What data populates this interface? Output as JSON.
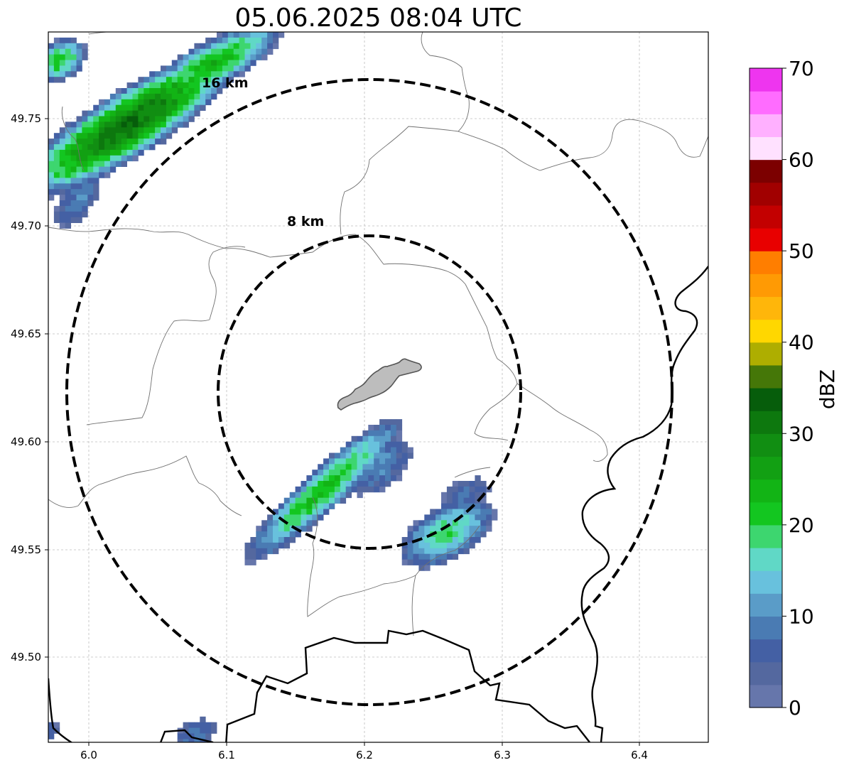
{
  "title": "05.06.2025 08:04 UTC",
  "map": {
    "x_ticks": [
      "6.0",
      "6.1",
      "6.2",
      "6.3",
      "6.4"
    ],
    "y_ticks": [
      "49.75",
      "49.70",
      "49.65",
      "49.60",
      "49.55",
      "49.50"
    ],
    "rings": [
      {
        "label": "8 km"
      },
      {
        "label": "16 km"
      }
    ],
    "grid": true
  },
  "colorbar": {
    "label": "dBZ",
    "min": 0,
    "max": 70,
    "tick_labels": [
      "0",
      "10",
      "20",
      "30",
      "40",
      "50",
      "60",
      "70"
    ],
    "colors": [
      "#6676ab",
      "#54689f",
      "#4460a4",
      "#4a7bb3",
      "#5a9cc8",
      "#68c1dd",
      "#60d8c6",
      "#3dd66f",
      "#13c620",
      "#12b415",
      "#12a013",
      "#118e12",
      "#0d780e",
      "#065d0b",
      "#457708",
      "#aeae00",
      "#ffd700",
      "#ffb60a",
      "#ff9a04",
      "#ff7e00",
      "#e80000",
      "#c30000",
      "#a10000",
      "#7c0000",
      "#ffe1ff",
      "#ffb0ff",
      "#ff6cff",
      "#ee35ef"
    ]
  }
}
